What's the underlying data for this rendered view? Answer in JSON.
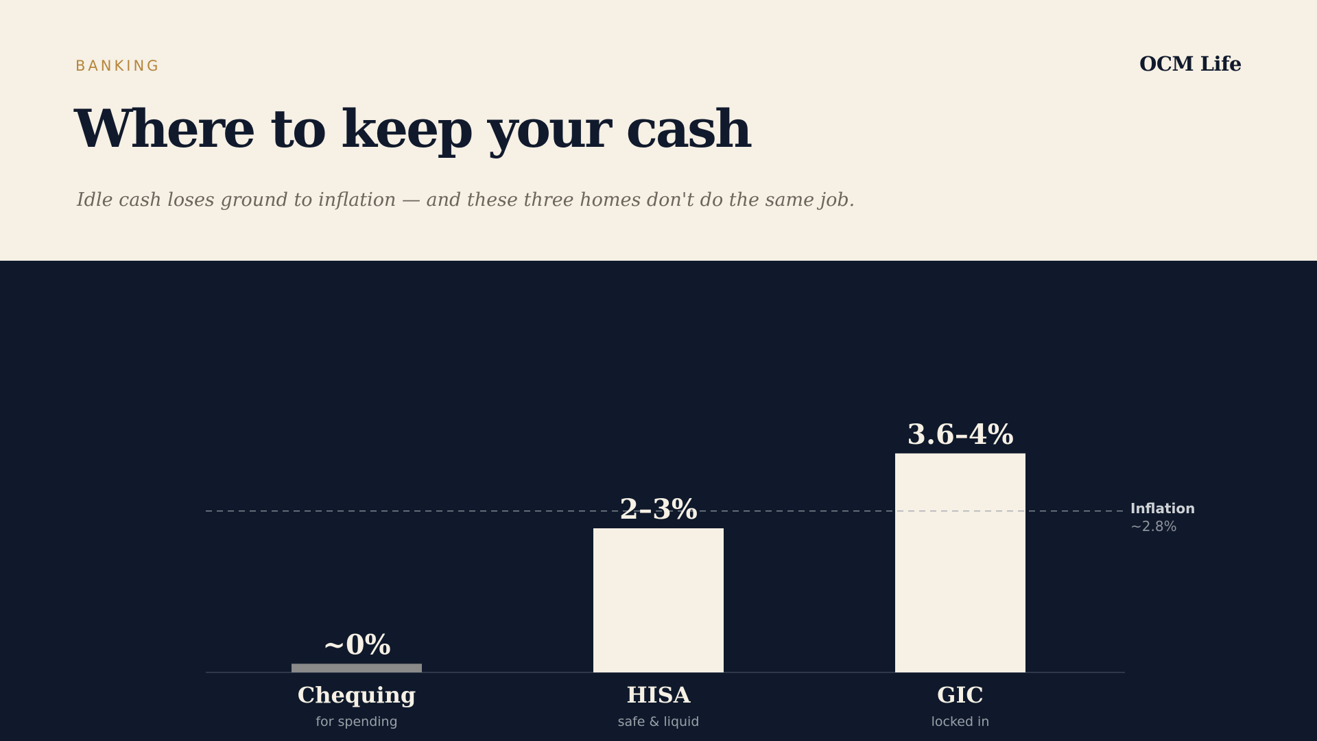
{
  "header": {
    "eyebrow": "BANKING",
    "brand": "OCM Life",
    "title": "Where to keep your cash",
    "subtitle": "Idle cash loses ground to inflation — and these three homes don't do the same job."
  },
  "colors": {
    "background": "#f6f0e5",
    "panel": "#0f192b",
    "accent": "#b5863a",
    "bar": "#f6f0e5",
    "bar_muted": "#8a8a8a"
  },
  "chart_data": {
    "type": "bar",
    "categories": [
      "Chequing",
      "HISA",
      "GIC"
    ],
    "category_sublabels": [
      "for spending",
      "safe & liquid",
      "locked in"
    ],
    "values": [
      0.15,
      2.5,
      3.8
    ],
    "data_labels": [
      "~0%",
      "2–3%",
      "3.6–4%"
    ],
    "ylim": [
      0,
      5
    ],
    "reference_line": {
      "name": "Inflation",
      "value": 2.8,
      "label": "~2.8%"
    },
    "grid": false,
    "legend": "none"
  }
}
